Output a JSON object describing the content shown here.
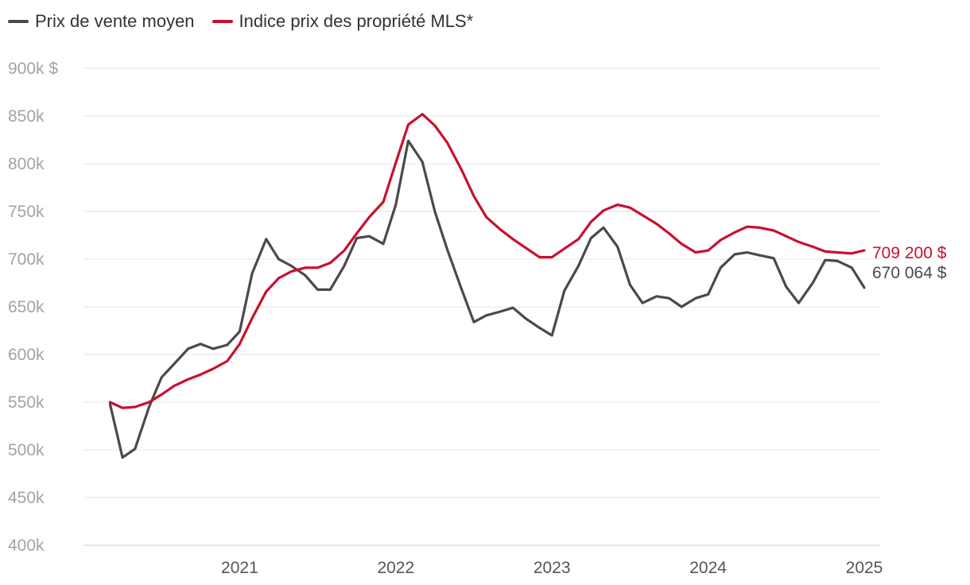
{
  "legend": {
    "items": [
      {
        "label": "Prix de vente moyen",
        "color": "#4a4a4a"
      },
      {
        "label": "Indice prix des propriété MLS*",
        "color": "#c8102e"
      }
    ],
    "placement": "top-left"
  },
  "chart_data": {
    "type": "line",
    "title": "",
    "xlabel": "",
    "ylabel": "",
    "grid": true,
    "ylim": [
      400000,
      900000
    ],
    "xlim": [
      2020.0,
      2025.0
    ],
    "yticks": [
      400000,
      450000,
      500000,
      550000,
      600000,
      650000,
      700000,
      750000,
      800000,
      850000,
      900000
    ],
    "ytick_labels": [
      "400k",
      "450k",
      "500k",
      "550k",
      "600k",
      "650k",
      "700k",
      "750k",
      "800k",
      "850k",
      "900k $"
    ],
    "xticks": [
      2021,
      2022,
      2023,
      2024,
      2025
    ],
    "xtick_labels": [
      "2021",
      "2022",
      "2023",
      "2024",
      "2025"
    ],
    "series": [
      {
        "name": "Prix de vente moyen",
        "color": "#4a4a4a",
        "end_label": "670 064 $",
        "x": [
          2020.17,
          2020.25,
          2020.33,
          2020.42,
          2020.5,
          2020.58,
          2020.67,
          2020.75,
          2020.83,
          2020.92,
          2021.0,
          2021.08,
          2021.17,
          2021.25,
          2021.33,
          2021.42,
          2021.5,
          2021.58,
          2021.67,
          2021.75,
          2021.83,
          2021.92,
          2022.0,
          2022.08,
          2022.17,
          2022.25,
          2022.33,
          2022.42,
          2022.5,
          2022.58,
          2022.67,
          2022.75,
          2022.83,
          2022.92,
          2023.0,
          2023.08,
          2023.17,
          2023.25,
          2023.33,
          2023.42,
          2023.5,
          2023.58,
          2023.67,
          2023.75,
          2023.83,
          2023.92,
          2024.0,
          2024.08,
          2024.17,
          2024.25,
          2024.33,
          2024.42,
          2024.5,
          2024.58,
          2024.67,
          2024.75,
          2024.83,
          2024.92,
          2025.0
        ],
        "values": [
          548000,
          492000,
          501000,
          545000,
          576000,
          590000,
          606000,
          611000,
          606000,
          610000,
          624000,
          685000,
          721000,
          700000,
          693000,
          683000,
          668000,
          668000,
          693000,
          722000,
          724000,
          716000,
          757000,
          824000,
          802000,
          750000,
          710000,
          669000,
          634000,
          641000,
          645000,
          649000,
          638000,
          628000,
          620000,
          667000,
          693000,
          722000,
          733000,
          713000,
          673000,
          654000,
          661000,
          659000,
          650000,
          659000,
          663000,
          691000,
          705000,
          707000,
          704000,
          701000,
          671000,
          654000,
          675000,
          699000,
          698000,
          691000,
          670064
        ]
      },
      {
        "name": "Indice prix des propriété MLS*",
        "color": "#c8102e",
        "end_label": "709 200 $",
        "x": [
          2020.17,
          2020.25,
          2020.33,
          2020.42,
          2020.5,
          2020.58,
          2020.67,
          2020.75,
          2020.83,
          2020.92,
          2021.0,
          2021.08,
          2021.17,
          2021.25,
          2021.33,
          2021.42,
          2021.5,
          2021.58,
          2021.67,
          2021.75,
          2021.83,
          2021.92,
          2022.0,
          2022.08,
          2022.17,
          2022.25,
          2022.33,
          2022.42,
          2022.5,
          2022.58,
          2022.67,
          2022.75,
          2022.83,
          2022.92,
          2023.0,
          2023.08,
          2023.17,
          2023.25,
          2023.33,
          2023.42,
          2023.5,
          2023.58,
          2023.67,
          2023.75,
          2023.83,
          2023.92,
          2024.0,
          2024.08,
          2024.17,
          2024.25,
          2024.33,
          2024.42,
          2024.5,
          2024.58,
          2024.67,
          2024.75,
          2024.83,
          2024.92,
          2025.0
        ],
        "values": [
          550000,
          544000,
          545000,
          550000,
          558000,
          567000,
          574000,
          579000,
          585000,
          593000,
          611000,
          638000,
          666000,
          680000,
          687000,
          691000,
          691000,
          696000,
          709000,
          727000,
          744000,
          760000,
          801000,
          841000,
          852000,
          840000,
          822000,
          794000,
          766000,
          744000,
          731000,
          721000,
          712000,
          702000,
          702000,
          711000,
          721000,
          739000,
          751000,
          757000,
          754000,
          746000,
          737000,
          727000,
          716000,
          707000,
          709000,
          720000,
          728000,
          734000,
          733000,
          730000,
          724000,
          718000,
          713000,
          708000,
          707000,
          706000,
          709200
        ]
      }
    ]
  }
}
